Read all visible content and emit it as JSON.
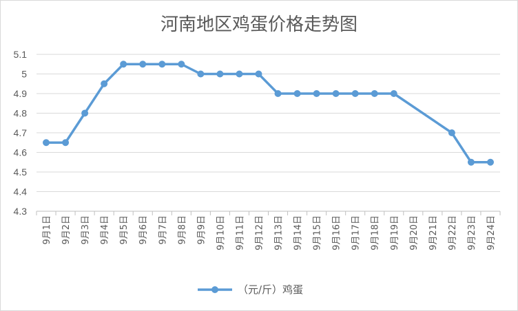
{
  "chart_data": {
    "type": "line",
    "title": "河南地区鸡蛋价格走势图",
    "categories": [
      "9月1日",
      "9月2日",
      "9月3日",
      "9月4日",
      "9月5日",
      "9月6日",
      "9月7日",
      "9月8日",
      "9月9日",
      "9月10日",
      "9月11日",
      "9月12日",
      "9月13日",
      "9月14日",
      "9月15日",
      "9月16日",
      "9月17日",
      "9月18日",
      "9月19日",
      "9月20日",
      "9月21日",
      "9月22日",
      "9月23日",
      "9月24日"
    ],
    "series": [
      {
        "name": "（元/斤）鸡蛋",
        "values": [
          4.65,
          4.65,
          4.8,
          4.95,
          5.05,
          5.05,
          5.05,
          5.05,
          5.0,
          5.0,
          5.0,
          5.0,
          4.9,
          4.9,
          4.9,
          4.9,
          4.9,
          4.9,
          4.9,
          null,
          null,
          4.7,
          4.55,
          4.55
        ],
        "color": "#5b9bd5"
      }
    ],
    "yticks": [
      "4.3",
      "4.4",
      "4.5",
      "4.6",
      "4.7",
      "4.8",
      "4.9",
      "5",
      "5.1"
    ],
    "ylim": [
      4.3,
      5.1
    ],
    "grid": true,
    "legend": "bottom"
  }
}
